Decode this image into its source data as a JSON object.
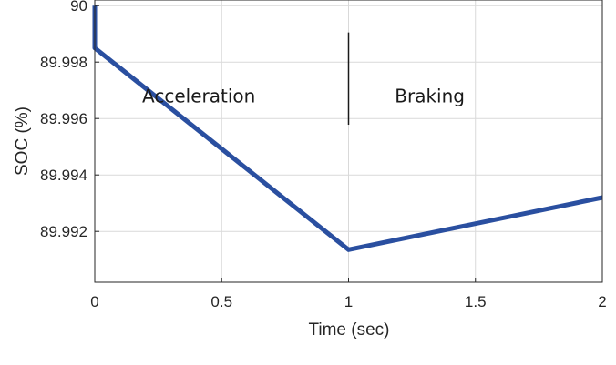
{
  "chart_data": {
    "type": "line",
    "title": "",
    "xlabel": "Time (sec)",
    "ylabel": "SOC (%)",
    "xlim": [
      0,
      2
    ],
    "ylim": [
      89.9902,
      90.0002
    ],
    "xticks": [
      0,
      0.5,
      1,
      1.5,
      2
    ],
    "xtick_labels": [
      "0",
      "0.5",
      "1",
      "1.5",
      "2"
    ],
    "yticks": [
      89.992,
      89.994,
      89.996,
      89.998,
      90
    ],
    "ytick_labels": [
      "89.992",
      "89.994",
      "89.996",
      "89.998",
      "90"
    ],
    "grid": true,
    "series": [
      {
        "color": "#2a4fa0",
        "x": [
          0,
          0,
          1,
          2
        ],
        "y": [
          90.0,
          89.9985,
          89.99135,
          89.9932
        ]
      }
    ],
    "annotations": [
      {
        "text": "Acceleration",
        "x": 0.41,
        "y": 89.9968
      },
      {
        "text": "Braking",
        "x": 1.32,
        "y": 89.9968
      }
    ],
    "markers": [
      {
        "x": 1.0,
        "y1": 89.99578,
        "y2": 89.99905
      }
    ]
  }
}
